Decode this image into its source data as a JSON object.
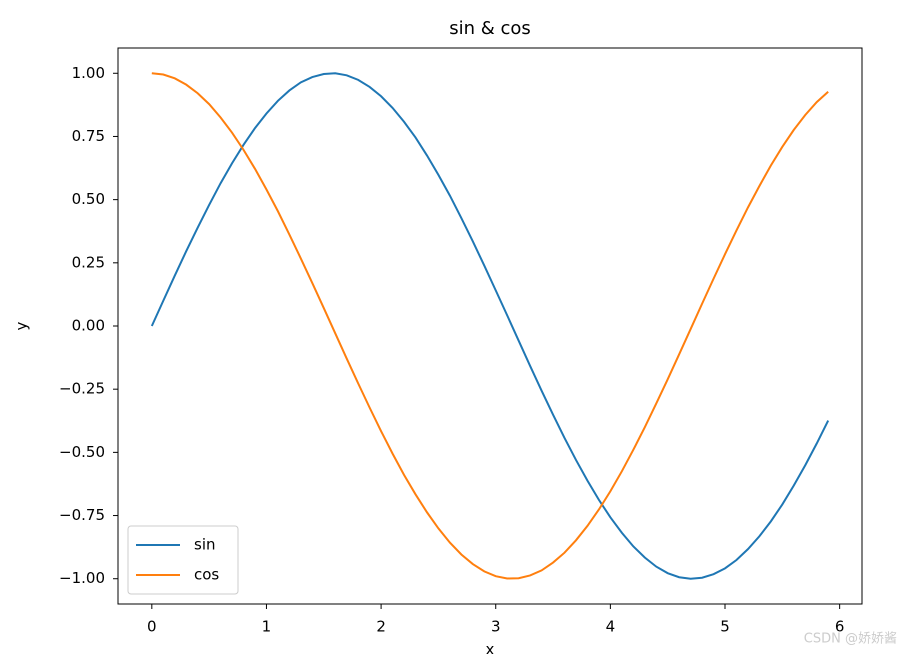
{
  "chart_data": {
    "type": "line",
    "title": "sin & cos",
    "xlabel": "x",
    "ylabel": "y",
    "x": [
      0,
      0.1,
      0.2,
      0.3,
      0.4,
      0.5,
      0.6,
      0.7,
      0.8,
      0.9,
      1,
      1.1,
      1.2,
      1.3,
      1.4,
      1.5,
      1.6,
      1.7,
      1.8,
      1.9,
      2,
      2.1,
      2.2,
      2.3,
      2.4,
      2.5,
      2.6,
      2.7,
      2.8,
      2.9,
      3,
      3.1,
      3.2,
      3.3,
      3.4,
      3.5,
      3.6,
      3.7,
      3.8,
      3.9,
      4,
      4.1,
      4.2,
      4.3,
      4.4,
      4.5,
      4.6,
      4.7,
      4.8,
      4.9,
      5,
      5.1,
      5.2,
      5.3,
      5.4,
      5.5,
      5.6,
      5.7,
      5.8,
      5.9
    ],
    "series": [
      {
        "name": "sin",
        "color": "#1f77b4",
        "values": [
          0,
          0.1,
          0.199,
          0.296,
          0.389,
          0.479,
          0.565,
          0.644,
          0.717,
          0.783,
          0.841,
          0.891,
          0.932,
          0.964,
          0.985,
          0.997,
          1,
          0.992,
          0.974,
          0.946,
          0.909,
          0.863,
          0.808,
          0.746,
          0.675,
          0.598,
          0.516,
          0.427,
          0.335,
          0.239,
          0.141,
          0.042,
          -0.058,
          -0.158,
          -0.256,
          -0.351,
          -0.443,
          -0.53,
          -0.612,
          -0.688,
          -0.757,
          -0.818,
          -0.872,
          -0.916,
          -0.952,
          -0.978,
          -0.994,
          -1,
          -0.996,
          -0.982,
          -0.959,
          -0.926,
          -0.883,
          -0.832,
          -0.773,
          -0.706,
          -0.631,
          -0.551,
          -0.465,
          -0.374
        ]
      },
      {
        "name": "cos",
        "color": "#ff7f0e",
        "values": [
          1,
          0.995,
          0.98,
          0.955,
          0.921,
          0.878,
          0.825,
          0.765,
          0.697,
          0.622,
          0.54,
          0.454,
          0.362,
          0.267,
          0.17,
          0.071,
          -0.029,
          -0.129,
          -0.227,
          -0.323,
          -0.416,
          -0.505,
          -0.589,
          -0.666,
          -0.737,
          -0.801,
          -0.857,
          -0.904,
          -0.942,
          -0.971,
          -0.99,
          -0.999,
          -0.998,
          -0.987,
          -0.967,
          -0.936,
          -0.897,
          -0.848,
          -0.791,
          -0.726,
          -0.654,
          -0.575,
          -0.49,
          -0.401,
          -0.307,
          -0.211,
          -0.112,
          -0.012,
          0.088,
          0.187,
          0.284,
          0.378,
          0.469,
          0.554,
          0.635,
          0.709,
          0.776,
          0.835,
          0.886,
          0.927
        ]
      }
    ],
    "xlim": [
      -0.295,
      6.195
    ],
    "ylim": [
      -1.1,
      1.1
    ],
    "xticks": [
      0,
      1,
      2,
      3,
      4,
      5,
      6
    ],
    "yticks": [
      {
        "value": -1,
        "label": "−1.00"
      },
      {
        "value": -0.75,
        "label": "−0.75"
      },
      {
        "value": -0.5,
        "label": "−0.50"
      },
      {
        "value": -0.25,
        "label": "−0.25"
      },
      {
        "value": 0,
        "label": "0.00"
      },
      {
        "value": 0.25,
        "label": "0.25"
      },
      {
        "value": 0.5,
        "label": "0.50"
      },
      {
        "value": 0.75,
        "label": "0.75"
      },
      {
        "value": 1,
        "label": "1.00"
      }
    ],
    "legend": "lower left",
    "grid": false
  },
  "watermark": "CSDN @娇娇酱"
}
